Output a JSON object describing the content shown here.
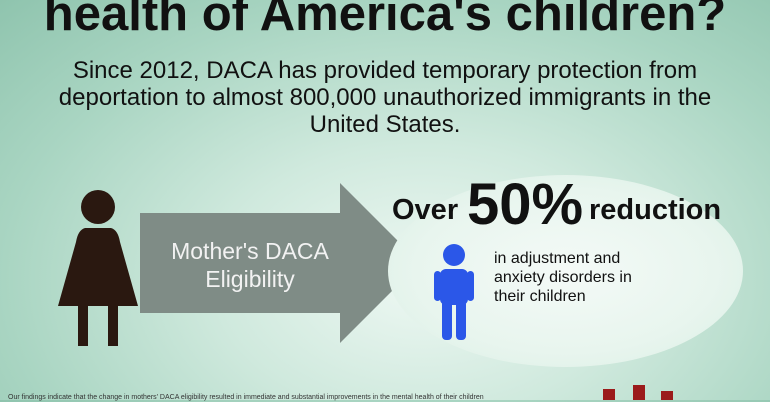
{
  "headline": "health of America's children?",
  "intro": "Since 2012, DACA has provided temporary protection from deportation to almost 800,000 unauthorized immigrants in the United States.",
  "arrow_label": "Mother's DACA Eligibility",
  "result": {
    "prefix": "Over",
    "percent": "50%",
    "suffix": "reduction",
    "outcome": "in adjustment and anxiety disorders in their children"
  },
  "footnote": "Our findings indicate that the change in mothers' DACA eligibility resulted in immediate and substantial improvements in the mental health of their children",
  "icons": {
    "mother": "woman-silhouette-icon",
    "child": "child-figure-icon",
    "arrow": "right-arrow-shape"
  },
  "colors": {
    "woman": "#2a1810",
    "child": "#2b57e8",
    "arrow": "#7f8c86",
    "logo": "#9b1b1b"
  }
}
